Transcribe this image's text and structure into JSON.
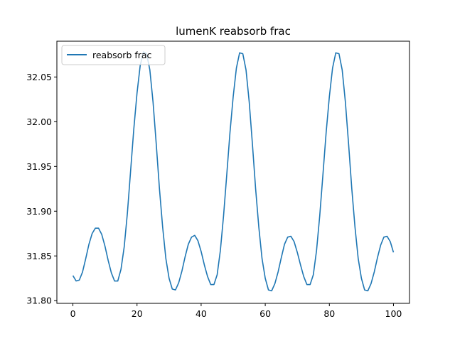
{
  "chart_data": {
    "type": "line",
    "title": "lumenK reabsorb frac",
    "xlabel": "",
    "ylabel": "",
    "xlim": [
      -5,
      105
    ],
    "ylim": [
      31.797,
      32.09
    ],
    "xticks": [
      0,
      20,
      40,
      60,
      80,
      100
    ],
    "yticks": [
      31.8,
      31.85,
      31.9,
      31.95,
      32.0,
      32.05
    ],
    "ytick_labels": [
      "31.80",
      "31.85",
      "31.90",
      "31.95",
      "32.00",
      "32.05"
    ],
    "grid": false,
    "legend_position": "top-left",
    "series": [
      {
        "name": "reabsorb frac",
        "color": "#1f77b4",
        "x": [
          0,
          1,
          2,
          3,
          4,
          5,
          6,
          7,
          8,
          9,
          10,
          11,
          12,
          13,
          14,
          15,
          16,
          17,
          18,
          19,
          20,
          21,
          22,
          23,
          24,
          25,
          26,
          27,
          28,
          29,
          30,
          31,
          32,
          33,
          34,
          35,
          36,
          37,
          38,
          39,
          40,
          41,
          42,
          43,
          44,
          45,
          46,
          47,
          48,
          49,
          50,
          51,
          52,
          53,
          54,
          55,
          56,
          57,
          58,
          59,
          60,
          61,
          62,
          63,
          64,
          65,
          66,
          67,
          68,
          69,
          70,
          71,
          72,
          73,
          74,
          75,
          76,
          77,
          78,
          79,
          80,
          81,
          82,
          83,
          84,
          85,
          86,
          87,
          88,
          89,
          90,
          91,
          92,
          93,
          94,
          95,
          96,
          97,
          98,
          99,
          100
        ],
        "y": [
          31.828,
          31.822,
          31.823,
          31.832,
          31.847,
          31.863,
          31.875,
          31.881,
          31.881,
          31.874,
          31.861,
          31.845,
          31.831,
          31.822,
          31.822,
          31.835,
          31.86,
          31.898,
          31.945,
          31.992,
          32.032,
          32.063,
          32.078,
          32.076,
          32.058,
          32.022,
          31.975,
          31.925,
          31.882,
          31.847,
          31.825,
          31.813,
          31.812,
          31.82,
          31.833,
          31.849,
          31.863,
          31.871,
          31.873,
          31.867,
          31.855,
          31.84,
          31.827,
          31.818,
          31.818,
          31.829,
          31.856,
          31.895,
          31.941,
          31.988,
          32.028,
          32.06,
          32.077,
          32.076,
          32.058,
          32.022,
          31.975,
          31.925,
          31.882,
          31.847,
          31.825,
          31.812,
          31.811,
          31.819,
          31.832,
          31.848,
          31.863,
          31.871,
          31.872,
          31.866,
          31.854,
          31.84,
          31.827,
          31.818,
          31.818,
          31.829,
          31.856,
          31.895,
          31.941,
          31.988,
          32.028,
          32.06,
          32.077,
          32.076,
          32.058,
          32.022,
          31.975,
          31.925,
          31.882,
          31.847,
          31.825,
          31.812,
          31.811,
          31.819,
          31.832,
          31.848,
          31.862,
          31.871,
          31.872,
          31.866,
          31.854
        ]
      }
    ]
  }
}
